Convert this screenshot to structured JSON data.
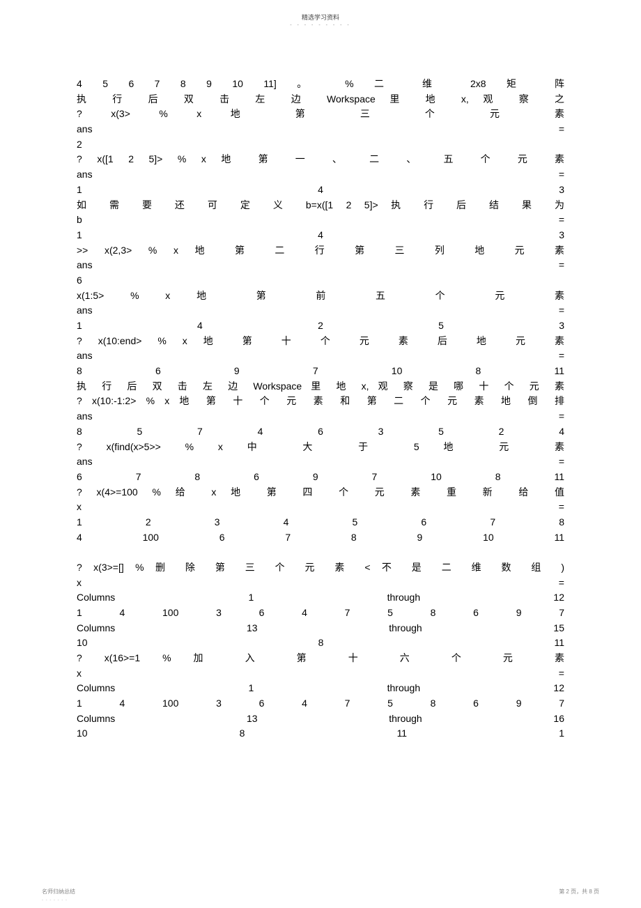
{
  "header": {
    "title": "精选学习资料",
    "dots": "- - - - - - - - -"
  },
  "lines": [
    {
      "cls": "just",
      "t": "4 5 6 7 8 9 10 11] 。 % 二 维 2x8 矩 阵"
    },
    {
      "cls": "just",
      "t": "执 行 后 双 击 左 边 Workspace 里 地 x, 观 察 之"
    },
    {
      "cls": "just",
      "t": "? x(3> % x 地 第 三 个 元 素"
    },
    {
      "cls": "just",
      "t": "ans ="
    },
    {
      "cls": "left",
      "t": "2"
    },
    {
      "cls": "just",
      "t": "? x([1 2 5]> % x 地 第 一 、 二 、 五 个 元 素"
    },
    {
      "cls": "just",
      "t": "ans ="
    },
    {
      "cls": "just",
      "t": "1 4 3"
    },
    {
      "cls": "just",
      "t": "如 需 要 还 可 定 义 b=x([1 2 5]> 执 行 后 结 果 为"
    },
    {
      "cls": "just",
      "t": "b ="
    },
    {
      "cls": "just",
      "t": "1 4 3"
    },
    {
      "cls": "just",
      "t": ">> x(2,3> % x 地 第 二 行 第 三 列 地 元 素"
    },
    {
      "cls": "just",
      "t": "ans ="
    },
    {
      "cls": "left",
      "t": "6"
    },
    {
      "cls": "just",
      "t": "x(1:5> % x 地 第 前 五 个 元 素"
    },
    {
      "cls": "just",
      "t": "ans ="
    },
    {
      "cls": "just",
      "t": "1 4 2 5 3"
    },
    {
      "cls": "just",
      "t": "? x(10:end> % x 地 第 十 个 元 素 后 地 元 素"
    },
    {
      "cls": "just",
      "t": "ans ="
    },
    {
      "cls": "just",
      "t": "8 6 9 7 10 8 11"
    },
    {
      "cls": "just",
      "t": "执 行 后 双 击 左 边 Workspace 里 地 x, 观 察 是 哪 十 个 元 素"
    },
    {
      "cls": "just",
      "t": "? x(10:-1:2> % x 地 第 十 个 元 素 和 第 二 个 元 素 地 倒 排"
    },
    {
      "cls": "just",
      "t": "ans ="
    },
    {
      "cls": "just",
      "t": "8 5 7 4 6 3 5 2 4"
    },
    {
      "cls": "just",
      "t": "? x(find(x>5>> % x 中 大 于 5 地 元 素"
    },
    {
      "cls": "just",
      "t": "ans ="
    },
    {
      "cls": "just",
      "t": "6 7 8 6 9 7 10 8 11"
    },
    {
      "cls": "just",
      "t": "? x(4>=100 % 给 x 地 第 四 个 元 素 重 新 给 值"
    },
    {
      "cls": "just",
      "t": "x ="
    },
    {
      "cls": "just",
      "t": "1 2 3 4 5 6 7 8"
    },
    {
      "cls": "just",
      "t": "4 100 6 7 8 9 10 11"
    },
    {
      "cls": "blank",
      "t": ""
    },
    {
      "cls": "just",
      "t": "? x(3>=[] % 删 除 第 三 个 元 素 < 不 是 二 维 数 组 )"
    },
    {
      "cls": "just",
      "t": "x ="
    },
    {
      "cls": "just",
      "t": "Columns 1 through 12"
    },
    {
      "cls": "just",
      "t": "1 4 100 3 6 4 7 5 8 6 9 7"
    },
    {
      "cls": "just",
      "t": "Columns 13 through 15"
    },
    {
      "cls": "just",
      "t": "10 8 11"
    },
    {
      "cls": "just",
      "t": "? x(16>=1 % 加 入 第 十 六 个 元 素"
    },
    {
      "cls": "just",
      "t": "x ="
    },
    {
      "cls": "just",
      "t": "Columns 1 through 12"
    },
    {
      "cls": "just",
      "t": "1 4 100 3 6 4 7 5 8 6 9 7"
    },
    {
      "cls": "just",
      "t": "Columns 13 through 16"
    },
    {
      "cls": "just",
      "t": "10 8 11 1"
    }
  ],
  "footer": {
    "left": "名师归纳总结",
    "right": "第 2 页，共 8 页",
    "dots": "- - - - - - -"
  }
}
